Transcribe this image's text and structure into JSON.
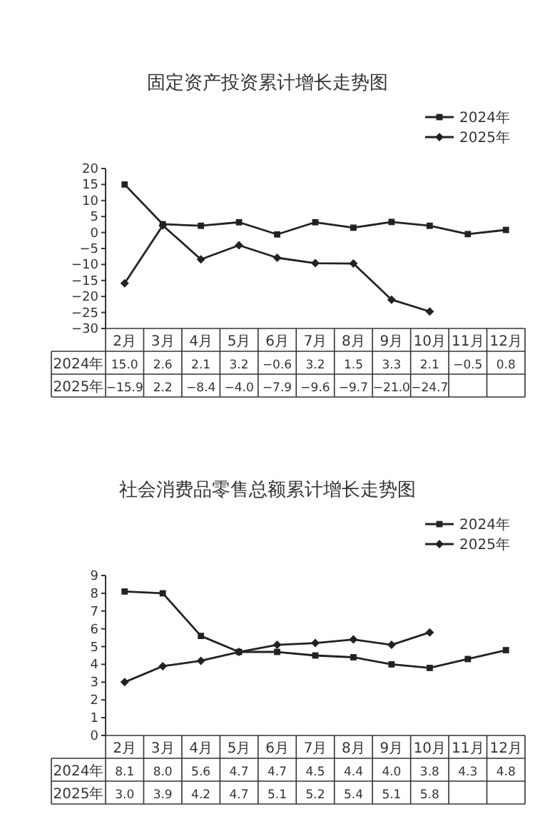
{
  "chart_data": [
    {
      "type": "line",
      "title": "固定资产投资累计增长走势图",
      "categories": [
        "2月",
        "3月",
        "4月",
        "5月",
        "6月",
        "7月",
        "8月",
        "9月",
        "10月",
        "11月",
        "12月"
      ],
      "series": [
        {
          "name": "2024年",
          "color": "#222222",
          "marker": "square",
          "values": [
            15.0,
            2.6,
            2.1,
            3.2,
            -0.6,
            3.2,
            1.5,
            3.3,
            2.1,
            -0.5,
            0.8
          ],
          "value_labels": [
            "15.0",
            "2.6",
            "2.1",
            "3.2",
            "−0.6",
            "3.2",
            "1.5",
            "3.3",
            "2.1",
            "−0.5",
            "0.8"
          ]
        },
        {
          "name": "2025年",
          "color": "#222222",
          "marker": "diamond",
          "values": [
            -15.9,
            2.2,
            -8.4,
            -4.0,
            -7.9,
            -9.6,
            -9.7,
            -21.0,
            -24.7,
            null,
            null
          ],
          "value_labels": [
            "−15.9",
            "2.2",
            "−8.4",
            "−4.0",
            "−7.9",
            "−9.6",
            "−9.7",
            "−21.0",
            "−24.7",
            null,
            null
          ]
        }
      ],
      "ylim": [
        -30,
        20
      ],
      "yticks": [
        -30,
        -25,
        -20,
        -15,
        -10,
        -5,
        0,
        5,
        10,
        15,
        20
      ],
      "legend": "top right",
      "line_style": "solid"
    },
    {
      "type": "line",
      "title": "社会消费品零售总额累计增长走势图",
      "categories": [
        "2月",
        "3月",
        "4月",
        "5月",
        "6月",
        "7月",
        "8月",
        "9月",
        "10月",
        "11月",
        "12月"
      ],
      "series": [
        {
          "name": "2024年",
          "color": "#222222",
          "marker": "square",
          "values": [
            8.1,
            8.0,
            5.6,
            4.7,
            4.7,
            4.5,
            4.4,
            4.0,
            3.8,
            4.3,
            4.8
          ],
          "value_labels": [
            "8.1",
            "8.0",
            "5.6",
            "4.7",
            "4.7",
            "4.5",
            "4.4",
            "4.0",
            "3.8",
            "4.3",
            "4.8"
          ]
        },
        {
          "name": "2025年",
          "color": "#222222",
          "marker": "diamond",
          "values": [
            3.0,
            3.9,
            4.2,
            4.7,
            5.1,
            5.2,
            5.4,
            5.1,
            5.8,
            null,
            null
          ],
          "value_labels": [
            "3.0",
            "3.9",
            "4.2",
            "4.7",
            "5.1",
            "5.2",
            "5.4",
            "5.1",
            "5.8",
            null,
            null
          ]
        }
      ],
      "ylim": [
        0,
        9
      ],
      "yticks": [
        0,
        1,
        2,
        3,
        4,
        5,
        6,
        7,
        8,
        9
      ],
      "legend": "top right",
      "line_style": "solid"
    }
  ]
}
